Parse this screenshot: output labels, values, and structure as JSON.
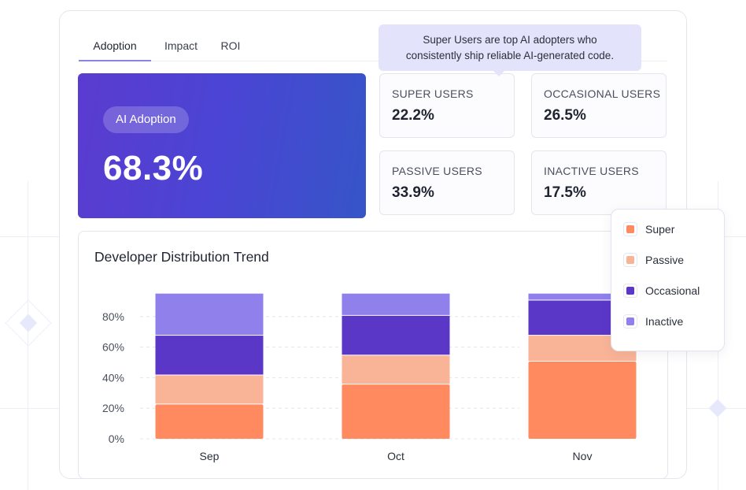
{
  "tabs": [
    {
      "label": "Adoption",
      "active": true
    },
    {
      "label": "Impact",
      "active": false
    },
    {
      "label": "ROI",
      "active": false
    }
  ],
  "adoption": {
    "label": "AI Adoption",
    "value": "68.3%"
  },
  "stats": {
    "super": {
      "label": "SUPER USERS",
      "value": "22.2%"
    },
    "occasional": {
      "label": "OCCASIONAL USERS",
      "value": "26.5%"
    },
    "passive": {
      "label": "PASSIVE USERS",
      "value": "33.9%"
    },
    "inactive": {
      "label": "INACTIVE USERS",
      "value": "17.5%"
    }
  },
  "tooltip": {
    "line1": "Super Users are top AI adopters who",
    "line2": "consistently ship reliable AI-generated code."
  },
  "trend": {
    "title": "Developer Distribution Trend"
  },
  "legend": {
    "items": [
      {
        "label": "Super",
        "color": "#ff8a5f"
      },
      {
        "label": "Passive",
        "color": "#f9b497"
      },
      {
        "label": "Occasional",
        "color": "#5b37c8"
      },
      {
        "label": "Inactive",
        "color": "#8f80ec"
      }
    ]
  },
  "colors": {
    "accent": "#5b3bd0",
    "super": "#ff8a5f",
    "passive": "#f9b497",
    "occasional": "#5b37c8",
    "inactive": "#8f80ec"
  },
  "chart_data": {
    "type": "bar",
    "stacked": true,
    "title": "Developer Distribution Trend",
    "categories": [
      "Sep",
      "Oct",
      "Nov"
    ],
    "y_ticks": [
      "0%",
      "20%",
      "40%",
      "60%",
      "80%"
    ],
    "ylim": [
      0,
      100
    ],
    "series": [
      {
        "name": "Super",
        "values": [
          23,
          36,
          51
        ]
      },
      {
        "name": "Passive",
        "values": [
          19,
          19,
          17
        ]
      },
      {
        "name": "Occasional",
        "values": [
          26,
          26,
          23
        ]
      },
      {
        "name": "Inactive",
        "values": [
          27,
          14,
          4
        ]
      }
    ]
  }
}
